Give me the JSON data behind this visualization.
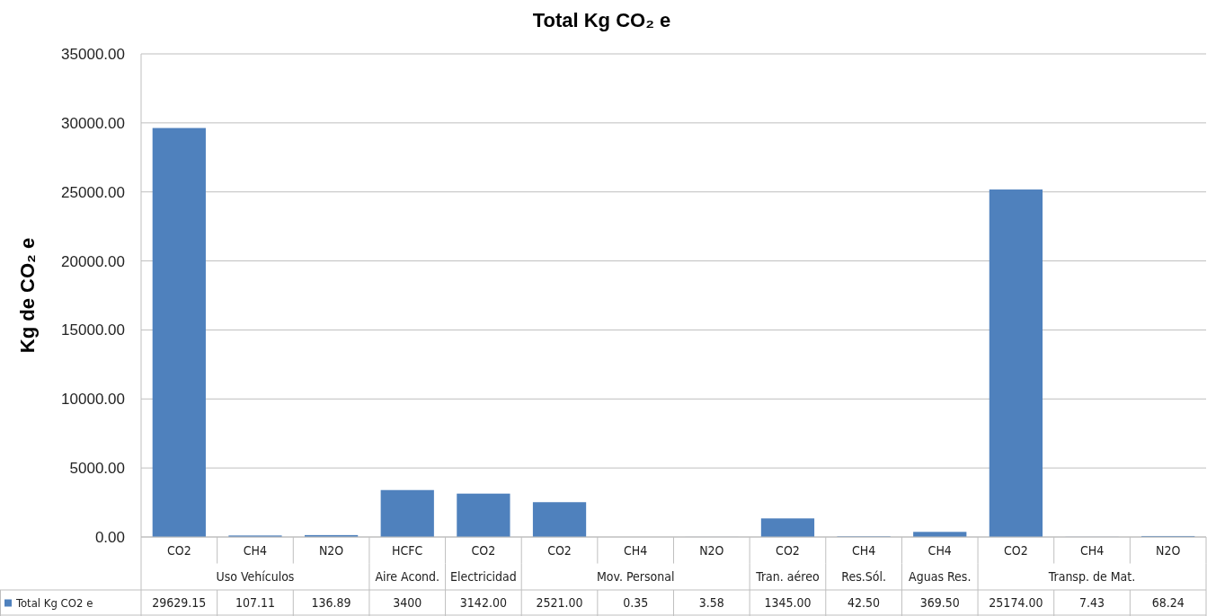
{
  "chart_data": {
    "type": "bar",
    "title": "Total Kg CO₂ e",
    "ylabel": "Kg de CO₂ e",
    "categories": [
      "CO2",
      "CH4",
      "N2O",
      "HCFC",
      "CO2",
      "CO2",
      "CH4",
      "N2O",
      "CO2",
      "CH4",
      "CH4",
      "CO2",
      "CH4",
      "N2O"
    ],
    "annotations": [
      "Uso Vehículos",
      "Aire Acond.",
      "Electricidad",
      "Mov. Personal",
      "Tran. aéreo",
      "Res.Sól.",
      "Aguas Res.",
      "Transp. de Mat."
    ],
    "series": [
      {
        "name": "Total Kg CO2 e",
        "color": "#4f81bd",
        "values": [
          29629.15,
          107.11,
          136.89,
          3400,
          3142.0,
          2521.0,
          0.35,
          3.58,
          1345.0,
          42.5,
          369.5,
          25174.0,
          7.43,
          68.24
        ],
        "value_labels": [
          "29629.15",
          "107.11",
          "136.89",
          "3400",
          "3142.00",
          "2521.00",
          "0.35",
          "3.58",
          "1345.00",
          "42.50",
          "369.50",
          "25174.00",
          "7.43",
          "68.24"
        ]
      }
    ],
    "ylim": [
      0,
      35000
    ],
    "yticks": [
      {
        "value": 0,
        "label": "0.00"
      },
      {
        "value": 5000,
        "label": "5000.00"
      },
      {
        "value": 10000,
        "label": "10000.00"
      },
      {
        "value": 15000,
        "label": "15000.00"
      },
      {
        "value": 20000,
        "label": "20000.00"
      },
      {
        "value": 25000,
        "label": "25000.00"
      },
      {
        "value": 30000,
        "label": "30000.00"
      },
      {
        "value": 35000,
        "label": "35000.00"
      }
    ],
    "grid": "y",
    "legend": "bottom"
  }
}
